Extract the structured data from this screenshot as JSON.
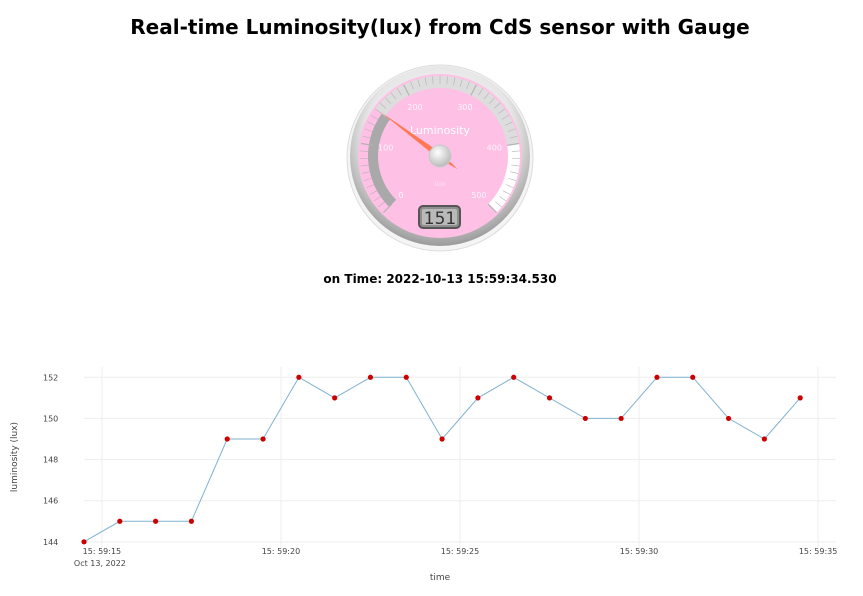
{
  "page": {
    "title": "Real-time Luminosity(lux) from CdS sensor with Gauge",
    "time_prefix": "on Time: ",
    "time_value": "2022-10-13 15:59:34.530"
  },
  "gauge": {
    "title": "Luminosity",
    "unit": "lux",
    "value": 151,
    "display": "151",
    "min": 0,
    "max": 500,
    "ticks": [
      "0",
      "100",
      "200",
      "300",
      "400",
      "500"
    ],
    "face_color": "#ffc0e6",
    "needle_color": "#ff7043"
  },
  "chart_data": {
    "type": "line",
    "xlabel": "time",
    "ylabel": "luminosity (lux)",
    "x_ticks": [
      "15:59:15",
      "15:59:20",
      "15:59:25",
      "15:59:30",
      "15:59:35"
    ],
    "x_tick_sub": "Oct 13, 2022",
    "y_ticks": [
      "144",
      "146",
      "148",
      "150",
      "152"
    ],
    "xlim": [
      "15:59:14.5",
      "15:59:35.5"
    ],
    "ylim": [
      143.7,
      152.5
    ],
    "grid": true,
    "line_color": "#7fb2d0",
    "marker_color": "#cc0000",
    "series": [
      {
        "x": [
          "15:59:14.5",
          "15:59:15.5",
          "15:59:16.5",
          "15:59:17.5",
          "15:59:18.5",
          "15:59:19.5",
          "15:59:20.5",
          "15:59:21.5",
          "15:59:22.5",
          "15:59:23.5",
          "15:59:24.5",
          "15:59:25.5",
          "15:59:26.5",
          "15:59:27.5",
          "15:59:28.5",
          "15:59:29.5",
          "15:59:30.5",
          "15:59:31.5",
          "15:59:32.5",
          "15:59:33.5",
          "15:59:34.5"
        ],
        "values": [
          144,
          145,
          145,
          145,
          149,
          149,
          152,
          151,
          152,
          152,
          149,
          151,
          152,
          151,
          150,
          150,
          152,
          152,
          150,
          149,
          151
        ]
      }
    ]
  }
}
